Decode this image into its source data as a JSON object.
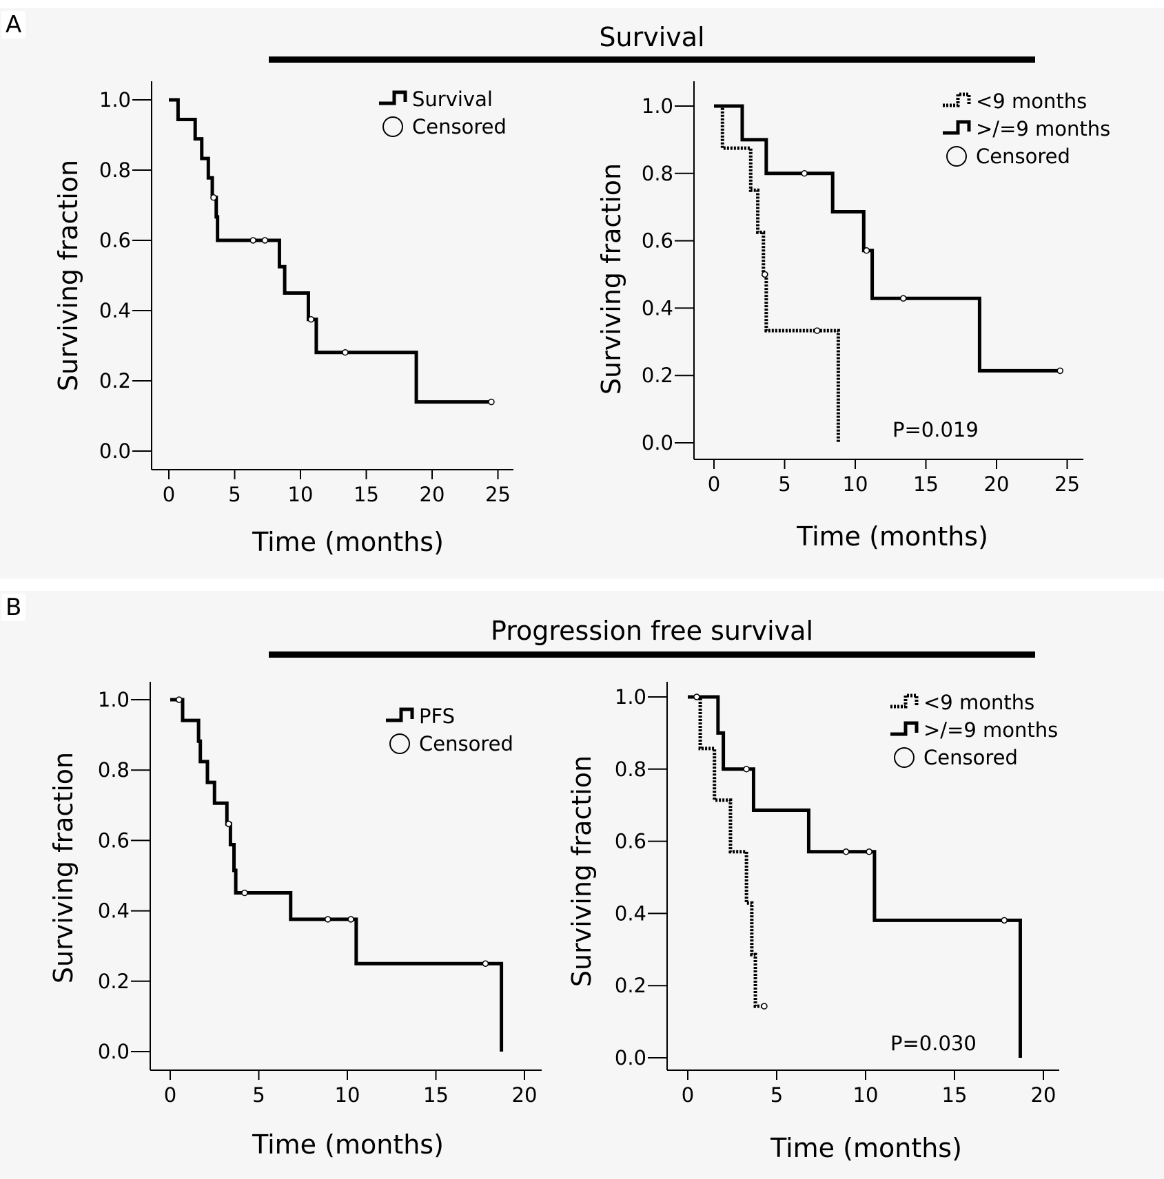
{
  "panels": {
    "a": {
      "letter": "A",
      "title": "Survival"
    },
    "b": {
      "letter": "B",
      "title": "Progression free survival"
    }
  },
  "chart_data": [
    {
      "id": "A1",
      "type": "line",
      "xlabel": "Time (months)",
      "ylabel": "Surviving fraction",
      "xlim": [
        0,
        25
      ],
      "ylim": [
        0,
        1
      ],
      "xticks": [
        0,
        5,
        10,
        15,
        20,
        25
      ],
      "yticks": [
        "0.0",
        "0.2",
        "0.4",
        "0.6",
        "0.8",
        "1.0"
      ],
      "legend_position": "top-right",
      "legend": [
        {
          "label": "Survival",
          "style": "solid"
        },
        {
          "label": "Censored",
          "style": "circle"
        }
      ],
      "series": [
        {
          "name": "Survival",
          "style": "solid",
          "steps": [
            [
              0,
              1.0
            ],
            [
              0.7,
              0.944
            ],
            [
              2.0,
              0.889
            ],
            [
              2.5,
              0.833
            ],
            [
              3.0,
              0.778
            ],
            [
              3.3,
              0.722
            ],
            [
              3.6,
              0.667
            ],
            [
              3.7,
              0.6
            ],
            [
              8.4,
              0.525
            ],
            [
              8.8,
              0.45
            ],
            [
              10.6,
              0.375
            ],
            [
              11.2,
              0.281
            ],
            [
              18.8,
              0.14
            ]
          ],
          "end": 24.5,
          "censored": [
            [
              3.4,
              0.722
            ],
            [
              6.4,
              0.6
            ],
            [
              7.3,
              0.6
            ],
            [
              10.8,
              0.375
            ],
            [
              13.4,
              0.281
            ],
            [
              24.5,
              0.14
            ]
          ]
        }
      ]
    },
    {
      "id": "A2",
      "type": "line",
      "xlabel": "Time (months)",
      "ylabel": "Surviving fraction",
      "xlim": [
        0,
        25
      ],
      "ylim": [
        0,
        1
      ],
      "xticks": [
        0,
        5,
        10,
        15,
        20,
        25
      ],
      "yticks": [
        "0.0",
        "0.2",
        "0.4",
        "0.6",
        "0.8",
        "1.0"
      ],
      "legend_position": "top-right",
      "legend": [
        {
          "label": "<9 months",
          "style": "dotted"
        },
        {
          "label": ">/=9 months",
          "style": "solid"
        },
        {
          "label": "Censored",
          "style": "circle"
        }
      ],
      "annotation": "P=0.019",
      "series": [
        {
          "name": "<9 months",
          "style": "dotted",
          "steps": [
            [
              0,
              1.0
            ],
            [
              0.6,
              0.875
            ],
            [
              2.6,
              0.75
            ],
            [
              3.1,
              0.625
            ],
            [
              3.5,
              0.5
            ],
            [
              3.7,
              0.333
            ],
            [
              8.8,
              0.0
            ]
          ],
          "end": 8.8,
          "censored": [
            [
              3.6,
              0.5
            ],
            [
              7.3,
              0.333
            ]
          ]
        },
        {
          "name": ">/=9 months",
          "style": "solid",
          "steps": [
            [
              0,
              1.0
            ],
            [
              2.0,
              0.9
            ],
            [
              3.7,
              0.8
            ],
            [
              8.4,
              0.686
            ],
            [
              10.6,
              0.571
            ],
            [
              11.2,
              0.429
            ],
            [
              18.8,
              0.214
            ]
          ],
          "end": 24.5,
          "censored": [
            [
              6.4,
              0.8
            ],
            [
              10.8,
              0.571
            ],
            [
              13.4,
              0.429
            ],
            [
              24.5,
              0.214
            ]
          ]
        }
      ]
    },
    {
      "id": "B1",
      "type": "line",
      "xlabel": "Time (months)",
      "ylabel": "Surviving fraction",
      "xlim": [
        0,
        20
      ],
      "ylim": [
        0,
        1
      ],
      "xticks": [
        0,
        5,
        10,
        15,
        20
      ],
      "yticks": [
        "0.0",
        "0.2",
        "0.4",
        "0.6",
        "0.8",
        "1.0"
      ],
      "legend_position": "top-right",
      "legend": [
        {
          "label": "PFS",
          "style": "solid"
        },
        {
          "label": "Censored",
          "style": "circle"
        }
      ],
      "series": [
        {
          "name": "PFS",
          "style": "solid",
          "steps": [
            [
              0,
              1.0
            ],
            [
              0.7,
              0.941
            ],
            [
              1.6,
              0.882
            ],
            [
              1.7,
              0.824
            ],
            [
              2.1,
              0.765
            ],
            [
              2.5,
              0.706
            ],
            [
              3.2,
              0.647
            ],
            [
              3.4,
              0.588
            ],
            [
              3.6,
              0.515
            ],
            [
              3.7,
              0.451
            ],
            [
              6.8,
              0.376
            ],
            [
              10.5,
              0.25
            ],
            [
              18.7,
              0.0
            ]
          ],
          "end": 18.7,
          "censored": [
            [
              0.5,
              1.0
            ],
            [
              3.3,
              0.647
            ],
            [
              4.2,
              0.451
            ],
            [
              8.9,
              0.376
            ],
            [
              10.2,
              0.376
            ],
            [
              17.8,
              0.25
            ]
          ]
        }
      ]
    },
    {
      "id": "B2",
      "type": "line",
      "xlabel": "Time (months)",
      "ylabel": "Surviving fraction",
      "xlim": [
        0,
        20
      ],
      "ylim": [
        0,
        1
      ],
      "xticks": [
        0,
        5,
        10,
        15,
        20
      ],
      "yticks": [
        "0.0",
        "0.2",
        "0.4",
        "0.6",
        "0.8",
        "1.0"
      ],
      "legend_position": "top-right",
      "legend": [
        {
          "label": "<9 months",
          "style": "dotted"
        },
        {
          "label": ">/=9 months",
          "style": "solid"
        },
        {
          "label": "Censored",
          "style": "circle"
        }
      ],
      "annotation": "P=0.030",
      "series": [
        {
          "name": "<9 months",
          "style": "dotted",
          "steps": [
            [
              0,
              1.0
            ],
            [
              0.7,
              0.857
            ],
            [
              1.5,
              0.714
            ],
            [
              2.4,
              0.571
            ],
            [
              3.3,
              0.429
            ],
            [
              3.6,
              0.286
            ],
            [
              3.8,
              0.143
            ]
          ],
          "end": 4.3,
          "censored": [
            [
              4.3,
              0.143
            ]
          ]
        },
        {
          "name": ">/=9 months",
          "style": "solid",
          "steps": [
            [
              0,
              1.0
            ],
            [
              1.7,
              0.9
            ],
            [
              2.0,
              0.8
            ],
            [
              3.7,
              0.686
            ],
            [
              6.8,
              0.571
            ],
            [
              10.5,
              0.381
            ],
            [
              18.7,
              0.0
            ]
          ],
          "end": 18.7,
          "censored": [
            [
              0.5,
              1.0
            ],
            [
              3.3,
              0.8
            ],
            [
              8.9,
              0.571
            ],
            [
              10.2,
              0.571
            ],
            [
              17.8,
              0.381
            ]
          ]
        }
      ]
    }
  ]
}
